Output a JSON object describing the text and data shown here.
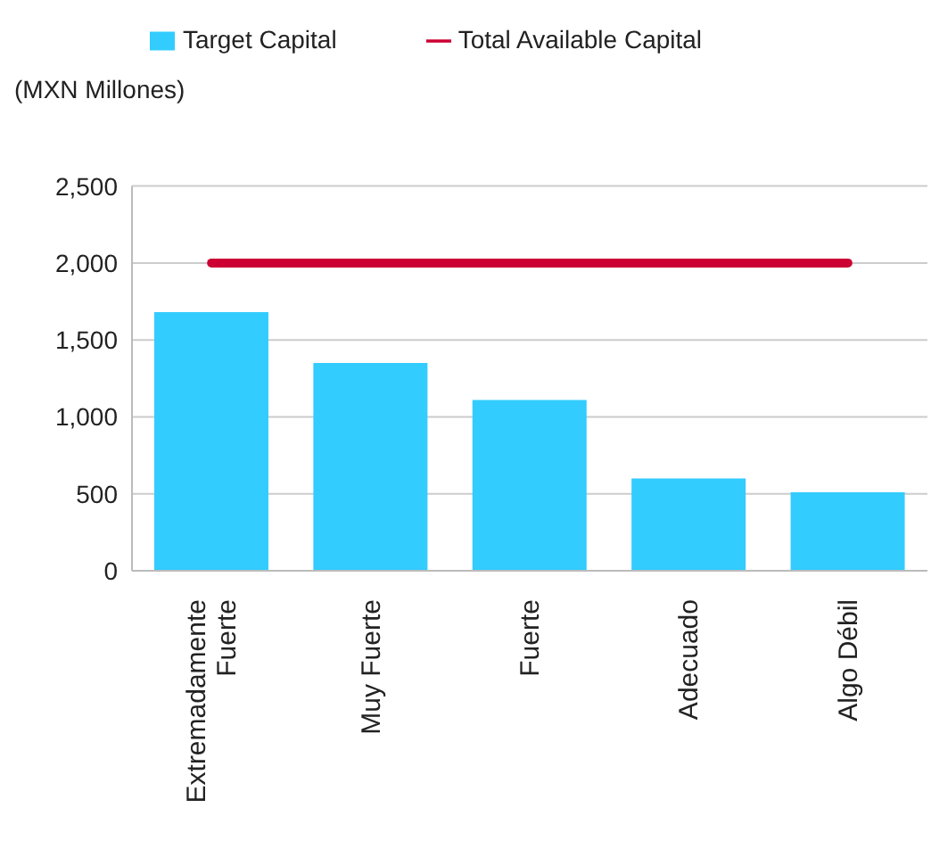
{
  "chart_data": {
    "type": "bar",
    "ylabel": "(MXN Millones)",
    "categories": [
      "Extremadamente Fuerte",
      "Muy Fuerte",
      "Fuerte",
      "Adecuado",
      "Algo Débil"
    ],
    "series": [
      {
        "name": "Target Capital",
        "color": "#33ccff",
        "values": [
          1680,
          1350,
          1110,
          600,
          510
        ]
      },
      {
        "name": "Total Available Capital",
        "type": "line",
        "color": "#cc0033",
        "values": [
          2000,
          2000,
          2000,
          2000,
          2000
        ]
      }
    ],
    "ylim": [
      0,
      2500
    ],
    "yticks": [
      {
        "value": 0,
        "label": "0"
      },
      {
        "value": 500,
        "label": "500"
      },
      {
        "value": 1000,
        "label": "1,000"
      },
      {
        "value": 1500,
        "label": "1,500"
      },
      {
        "value": 2000,
        "label": "2,000"
      },
      {
        "value": 2500,
        "label": "2,500"
      }
    ],
    "grid": "y",
    "legend": "top",
    "marker": "none"
  }
}
